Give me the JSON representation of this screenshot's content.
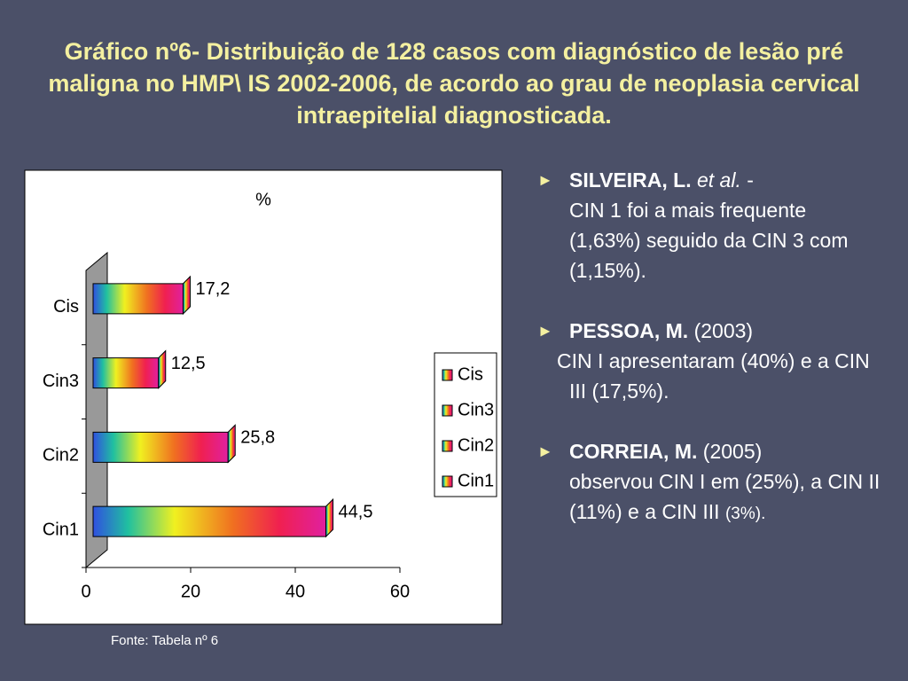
{
  "title": "Gráfico nº6- Distribuição de 128 casos com diagnóstico de lesão pré maligna no HMP\\ IS  2002-2006, de acordo ao grau de neoplasia cervical intraepitelial diagnosticada.",
  "chart_data": {
    "type": "hbar",
    "title": "%",
    "categories": [
      "Cin1",
      "Cin2",
      "Cin3",
      "Cis"
    ],
    "values": [
      44.5,
      25.8,
      12.5,
      17.2
    ],
    "value_labels": [
      "44,5",
      "25,8",
      "12,5",
      "17,2"
    ],
    "xlim": [
      0,
      60
    ],
    "xticks": [
      0,
      20,
      40,
      60
    ],
    "legend": "right"
  },
  "source": "Fonte: Tabela nº 6",
  "bullets": [
    {
      "author": "SILVEIRA, L.",
      "etal": "et al.",
      "sep": "-",
      "text": "CIN 1 foi a mais frequente (1,63%) seguido da CIN 3 com (1,15%)."
    },
    {
      "author": "PESSOA, M.",
      "year": "(2003)",
      "text": "CIN I apresentaram (40%) e a CIN III (17,5%)."
    },
    {
      "author": "CORREIA, M.",
      "year": "(2005)",
      "text": "observou  CIN I em (25%), a CIN II (11%) e a CIN III",
      "tail": "(3%)."
    }
  ]
}
